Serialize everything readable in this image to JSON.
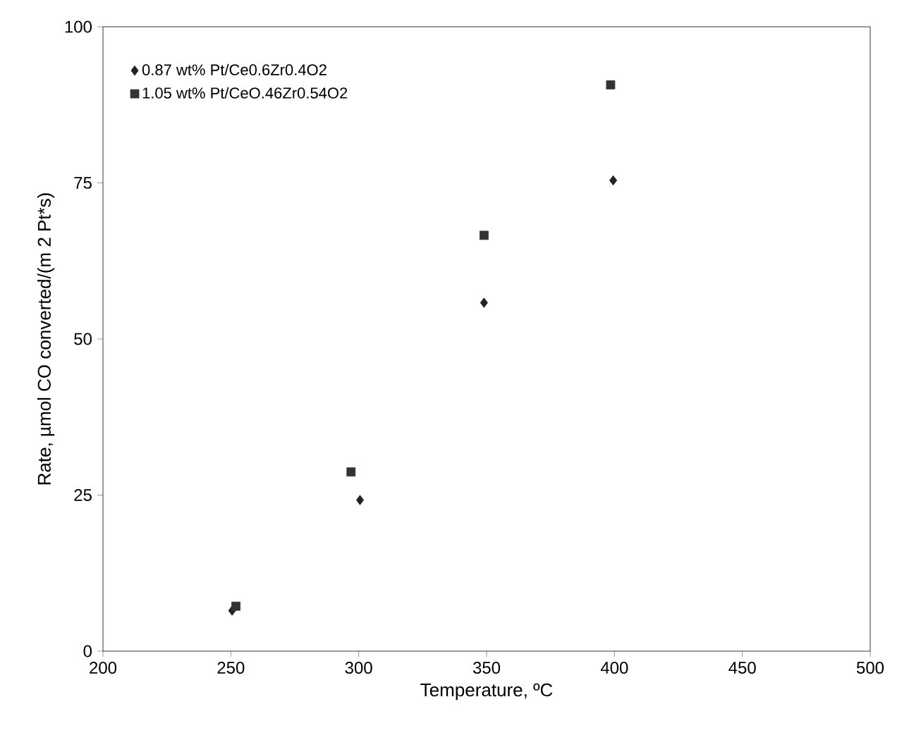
{
  "chart_data": {
    "type": "scatter",
    "xlabel": "Temperature, ºC",
    "ylabel": "Rate, µmol CO converted/(m 2 Pt*s)",
    "xlim": [
      200,
      500
    ],
    "ylim": [
      0,
      100
    ],
    "xticks": [
      200,
      250,
      300,
      350,
      400,
      450,
      500
    ],
    "yticks": [
      0,
      25,
      50,
      75,
      100
    ],
    "grid": false,
    "legend": "top left",
    "series": [
      {
        "name": "0.87 wt% Pt/Ce0.6Zr0.4O2",
        "color": "#222222",
        "marker": "diamond",
        "x": [
          250.5,
          300.5,
          349,
          399.5
        ],
        "values": [
          6.5,
          24.2,
          55.8,
          75.4
        ]
      },
      {
        "name": "1.05 wt% Pt/CeO.46Zr0.54O2",
        "color": "#333333",
        "marker": "square",
        "x": [
          252,
          297,
          349,
          398.5
        ],
        "values": [
          7.2,
          28.7,
          66.6,
          90.7
        ]
      }
    ]
  }
}
